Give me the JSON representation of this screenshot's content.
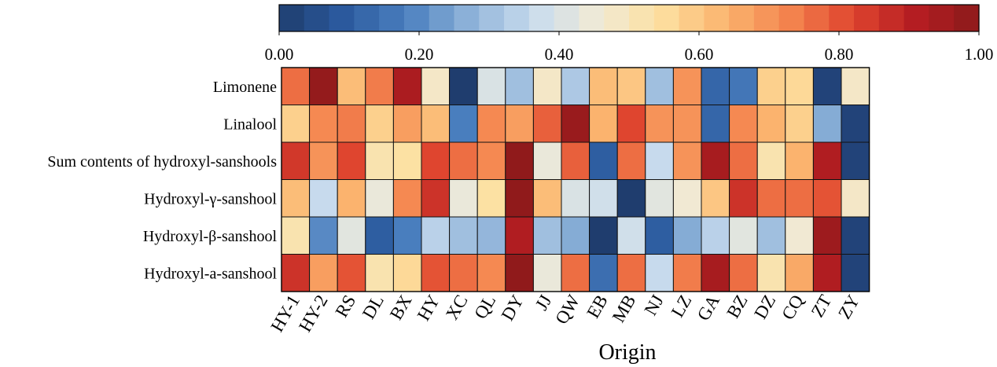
{
  "chart_data": {
    "type": "heatmap",
    "xlabel": "Origin",
    "ylabel": "",
    "title": "",
    "rows": [
      "Limonene",
      "Linalool",
      "Sum contents of hydroxyl-sanshools",
      "Hydroxyl-γ-sanshool",
      "Hydroxyl-β-sanshool",
      "Hydroxyl-a-sanshool"
    ],
    "columns": [
      "HY-1",
      "HY-2",
      "RS",
      "DL",
      "BX",
      "HY",
      "XC",
      "QL",
      "DY",
      "JJ",
      "QW",
      "EB",
      "MB",
      "NJ",
      "LZ",
      "GA",
      "BZ",
      "DZ",
      "CQ",
      "ZT",
      "ZY"
    ],
    "values": [
      [
        0.76,
        0.98,
        0.62,
        0.74,
        0.93,
        0.48,
        0.0,
        0.4,
        0.3,
        0.48,
        0.32,
        0.62,
        0.6,
        0.3,
        0.7,
        0.12,
        0.16,
        0.58,
        0.56,
        0.02,
        0.48
      ],
      [
        0.58,
        0.72,
        0.74,
        0.58,
        0.68,
        0.62,
        0.18,
        0.72,
        0.68,
        0.78,
        0.97,
        0.64,
        0.82,
        0.7,
        0.7,
        0.12,
        0.72,
        0.64,
        0.58,
        0.26,
        0.02
      ],
      [
        0.85,
        0.7,
        0.82,
        0.52,
        0.54,
        0.82,
        0.76,
        0.72,
        0.99,
        0.44,
        0.78,
        0.1,
        0.76,
        0.36,
        0.7,
        0.94,
        0.76,
        0.52,
        0.64,
        0.92,
        0.02
      ],
      [
        0.62,
        0.36,
        0.64,
        0.44,
        0.72,
        0.86,
        0.44,
        0.54,
        0.99,
        0.62,
        0.4,
        0.38,
        0.0,
        0.42,
        0.46,
        0.6,
        0.86,
        0.76,
        0.76,
        0.8,
        0.48
      ],
      [
        0.52,
        0.2,
        0.42,
        0.1,
        0.18,
        0.34,
        0.3,
        0.28,
        0.92,
        0.3,
        0.26,
        0.0,
        0.38,
        0.1,
        0.26,
        0.34,
        0.42,
        0.3,
        0.46,
        0.96,
        0.02
      ],
      [
        0.86,
        0.68,
        0.8,
        0.52,
        0.56,
        0.8,
        0.76,
        0.72,
        0.99,
        0.44,
        0.76,
        0.14,
        0.76,
        0.36,
        0.74,
        0.94,
        0.76,
        0.52,
        0.66,
        0.92,
        0.02
      ]
    ],
    "colorbar": {
      "range": [
        0.0,
        1.0
      ],
      "ticks": [
        "0.00",
        "0.20",
        "0.40",
        "0.60",
        "0.80",
        "1.00"
      ],
      "colors": [
        "#1f3d6e",
        "#2b5a9e",
        "#4a7fbf",
        "#8fb3d9",
        "#c9dcee",
        "#f0ead6",
        "#fde0a0",
        "#fbb56f",
        "#f4854f",
        "#e0462f",
        "#b51d22",
        "#8b1a1a"
      ]
    }
  }
}
